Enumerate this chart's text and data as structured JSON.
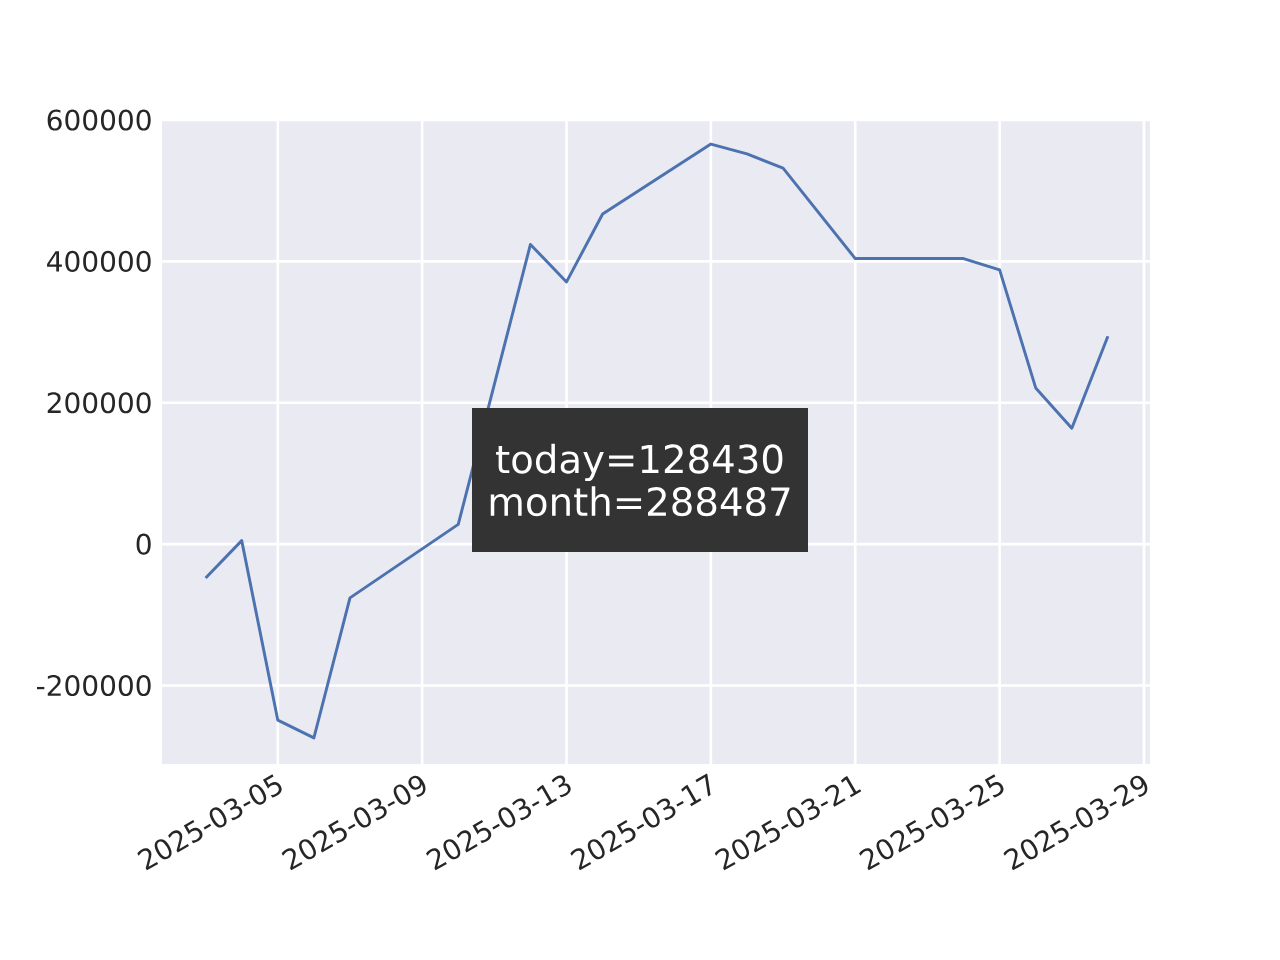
{
  "chart_data": {
    "type": "line",
    "x": [
      "2025-03-03",
      "2025-03-04",
      "2025-03-05",
      "2025-03-06",
      "2025-03-07",
      "2025-03-10",
      "2025-03-11",
      "2025-03-12",
      "2025-03-13",
      "2025-03-14",
      "2025-03-17",
      "2025-03-18",
      "2025-03-19",
      "2025-03-21",
      "2025-03-24",
      "2025-03-25",
      "2025-03-26",
      "2025-03-27",
      "2025-03-28"
    ],
    "series": [
      {
        "color": "#4c72b0",
        "values": [
          -48000,
          5000,
          -249000,
          -274000,
          -76000,
          28000,
          226000,
          424000,
          371000,
          467000,
          566000,
          552000,
          532000,
          404000,
          404000,
          388000,
          221000,
          164000,
          294000
        ]
      }
    ],
    "xlim": [
      "2025-03-01T19:00",
      "2025-03-29T04:00"
    ],
    "xticks": [
      "2025-03-05",
      "2025-03-09",
      "2025-03-13",
      "2025-03-17",
      "2025-03-21",
      "2025-03-25",
      "2025-03-29"
    ],
    "ylim": [
      -311000,
      600000
    ],
    "yticks": [
      -200000,
      0,
      200000,
      400000,
      600000
    ],
    "annotations": [
      "today=128430",
      "month=288487"
    ],
    "grid": true
  }
}
